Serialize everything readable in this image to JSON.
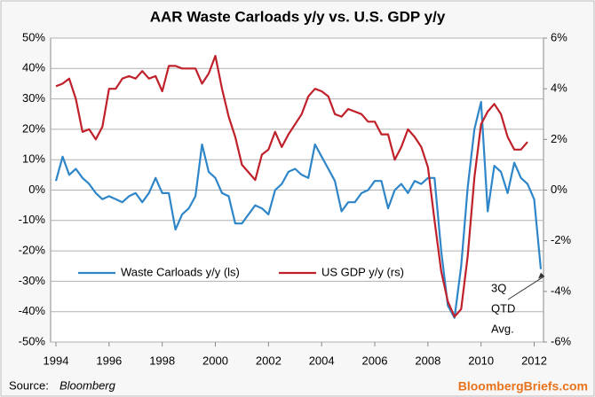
{
  "chart_data": {
    "type": "line",
    "title": "AAR Waste Carloads y/y vs. U.S. GDP y/y",
    "source_label": "Source:",
    "source": "Bloomberg",
    "brand": "BloombergBriefs.com",
    "annotation": [
      "3Q",
      "QTD",
      "Avg."
    ],
    "legend": "bottom-left",
    "grid": true,
    "xlim": [
      1993.8,
      2012.35
    ],
    "xticks": [
      1994,
      1996,
      1998,
      2000,
      2002,
      2004,
      2006,
      2008,
      2010,
      2012
    ],
    "ylim": [
      -50,
      50
    ],
    "yticks": [
      {
        "value": 50,
        "label": "50%"
      },
      {
        "value": 40,
        "label": "40%"
      },
      {
        "value": 30,
        "label": "30%"
      },
      {
        "value": 20,
        "label": "20%"
      },
      {
        "value": 10,
        "label": "10%"
      },
      {
        "value": 0,
        "label": "0%"
      },
      {
        "value": -10,
        "label": "-10%"
      },
      {
        "value": -20,
        "label": "-20%"
      },
      {
        "value": -30,
        "label": "-30%"
      },
      {
        "value": -40,
        "label": "-40%"
      },
      {
        "value": -50,
        "label": "-50%"
      }
    ],
    "y2lim": [
      -6,
      6
    ],
    "y2ticks": [
      {
        "value": 6,
        "label": "6%"
      },
      {
        "value": 4,
        "label": "4%"
      },
      {
        "value": 2,
        "label": "2%"
      },
      {
        "value": 0,
        "label": "0%"
      },
      {
        "value": -2,
        "label": "-2%"
      },
      {
        "value": -4,
        "label": "-4%"
      },
      {
        "value": -6,
        "label": "-6%"
      }
    ],
    "series": [
      {
        "name": "Waste Carloads y/y (ls)",
        "color": "#2e86c8",
        "axis": "y",
        "x": [
          1994,
          1994.25,
          1994.5,
          1994.75,
          1995,
          1995.25,
          1995.5,
          1995.75,
          1996,
          1996.25,
          1996.5,
          1996.75,
          1997,
          1997.25,
          1997.5,
          1997.75,
          1998,
          1998.25,
          1998.5,
          1998.75,
          1999,
          1999.25,
          1999.5,
          1999.75,
          2000,
          2000.25,
          2000.5,
          2000.75,
          2001,
          2001.25,
          2001.5,
          2001.75,
          2002,
          2002.25,
          2002.5,
          2002.75,
          2003,
          2003.25,
          2003.5,
          2003.75,
          2004,
          2004.25,
          2004.5,
          2004.75,
          2005,
          2005.25,
          2005.5,
          2005.75,
          2006,
          2006.25,
          2006.5,
          2006.75,
          2007,
          2007.25,
          2007.5,
          2007.75,
          2008,
          2008.25,
          2008.5,
          2008.75,
          2009,
          2009.25,
          2009.5,
          2009.75,
          2010,
          2010.25,
          2010.5,
          2010.75,
          2011,
          2011.25,
          2011.5,
          2011.75,
          2012,
          2012.25
        ],
        "values": [
          3,
          11,
          5,
          7,
          4,
          2,
          -1,
          -3,
          -2,
          -3,
          -4,
          -2,
          -1,
          -4,
          -1,
          4,
          -1,
          -1,
          -13,
          -8,
          -6,
          -2,
          15,
          6,
          4,
          -1,
          -2,
          -11,
          -11,
          -8,
          -5,
          -6,
          -8,
          0,
          2,
          6,
          7,
          5,
          4,
          15,
          11,
          7,
          3,
          -7,
          -4,
          -4,
          -1,
          0,
          3,
          3,
          -6,
          0,
          2,
          -1,
          3,
          2,
          4,
          4,
          -20,
          -38,
          -42,
          -25,
          1,
          20,
          29,
          -7,
          8,
          6,
          -1,
          9,
          4,
          2,
          -3,
          -26
        ]
      },
      {
        "name": "US GDP y/y (rs)",
        "color": "#c0202a",
        "axis": "y2",
        "x": [
          1994,
          1994.25,
          1994.5,
          1994.75,
          1995,
          1995.25,
          1995.5,
          1995.75,
          1996,
          1996.25,
          1996.5,
          1996.75,
          1997,
          1997.25,
          1997.5,
          1997.75,
          1998,
          1998.25,
          1998.5,
          1998.75,
          1999,
          1999.25,
          1999.5,
          1999.75,
          2000,
          2000.25,
          2000.5,
          2000.75,
          2001,
          2001.25,
          2001.5,
          2001.75,
          2002,
          2002.25,
          2002.5,
          2002.75,
          2003,
          2003.25,
          2003.5,
          2003.75,
          2004,
          2004.25,
          2004.5,
          2004.75,
          2005,
          2005.25,
          2005.5,
          2005.75,
          2006,
          2006.25,
          2006.5,
          2006.75,
          2007,
          2007.25,
          2007.5,
          2007.75,
          2008,
          2008.25,
          2008.5,
          2008.75,
          2009,
          2009.25,
          2009.5,
          2009.75,
          2010,
          2010.25,
          2010.5,
          2010.75,
          2011,
          2011.25,
          2011.5,
          2011.75
        ],
        "values": [
          4.1,
          4.2,
          4.4,
          3.6,
          2.3,
          2.4,
          2.0,
          2.5,
          4.0,
          4.0,
          4.4,
          4.5,
          4.4,
          4.7,
          4.4,
          4.5,
          3.9,
          4.9,
          4.9,
          4.8,
          4.8,
          4.8,
          4.2,
          4.6,
          5.3,
          4.0,
          2.9,
          2.1,
          1.0,
          0.7,
          0.4,
          1.4,
          1.6,
          2.3,
          1.7,
          2.2,
          2.6,
          3.0,
          3.7,
          4.0,
          3.9,
          3.7,
          3.0,
          2.9,
          3.2,
          3.1,
          3.0,
          2.7,
          2.7,
          2.2,
          2.2,
          1.2,
          1.7,
          2.4,
          2.1,
          1.7,
          0.9,
          -1.2,
          -3.2,
          -4.4,
          -5.0,
          -4.7,
          -2.6,
          0.5,
          2.6,
          3.1,
          3.4,
          3.0,
          2.1,
          1.6,
          1.6,
          1.9
        ]
      }
    ]
  }
}
